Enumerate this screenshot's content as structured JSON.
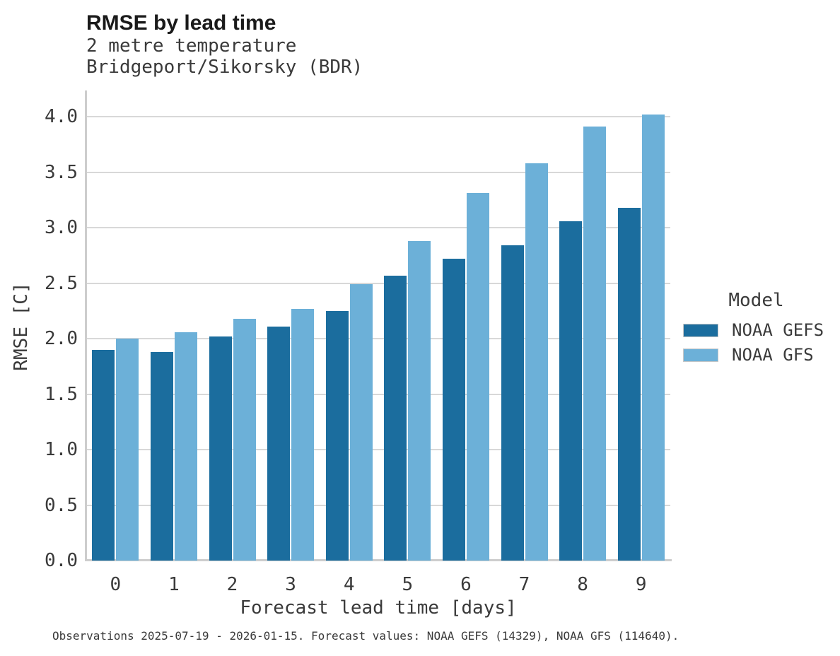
{
  "title": "RMSE by lead time",
  "subtitle_line1": "2 metre temperature",
  "subtitle_line2": "Bridgeport/Sikorsky (BDR)",
  "caption": "Observations 2025-07-19 - 2026-01-15. Forecast values: NOAA GEFS (14329), NOAA GFS (114640).",
  "legend": {
    "title": "Model"
  },
  "colors": {
    "gefs_dark_blue": "#1b6d9e",
    "gfs_light_blue": "#6cb0d8"
  },
  "chart_data": {
    "type": "bar",
    "title": "RMSE by lead time",
    "subtitle": [
      "2 metre temperature",
      "Bridgeport/Sikorsky (BDR)"
    ],
    "categories": [
      "0",
      "1",
      "2",
      "3",
      "4",
      "5",
      "6",
      "7",
      "8",
      "9"
    ],
    "series": [
      {
        "name": "NOAA GEFS",
        "color": "#1b6d9e",
        "values": [
          1.9,
          1.88,
          2.02,
          2.11,
          2.25,
          2.57,
          2.72,
          2.84,
          3.06,
          3.18
        ]
      },
      {
        "name": "NOAA GFS",
        "color": "#6cb0d8",
        "values": [
          2.0,
          2.06,
          2.18,
          2.27,
          2.49,
          2.88,
          3.31,
          3.58,
          3.91,
          4.02
        ]
      }
    ],
    "xlabel": "Forecast lead time [days]",
    "ylabel": "RMSE [C]",
    "ylim": [
      0,
      4.23
    ],
    "yticks": [
      0.0,
      0.5,
      1.0,
      1.5,
      2.0,
      2.5,
      3.0,
      3.5,
      4.0
    ],
    "grid": true,
    "legend_position": "right",
    "legend_title": "Model"
  }
}
